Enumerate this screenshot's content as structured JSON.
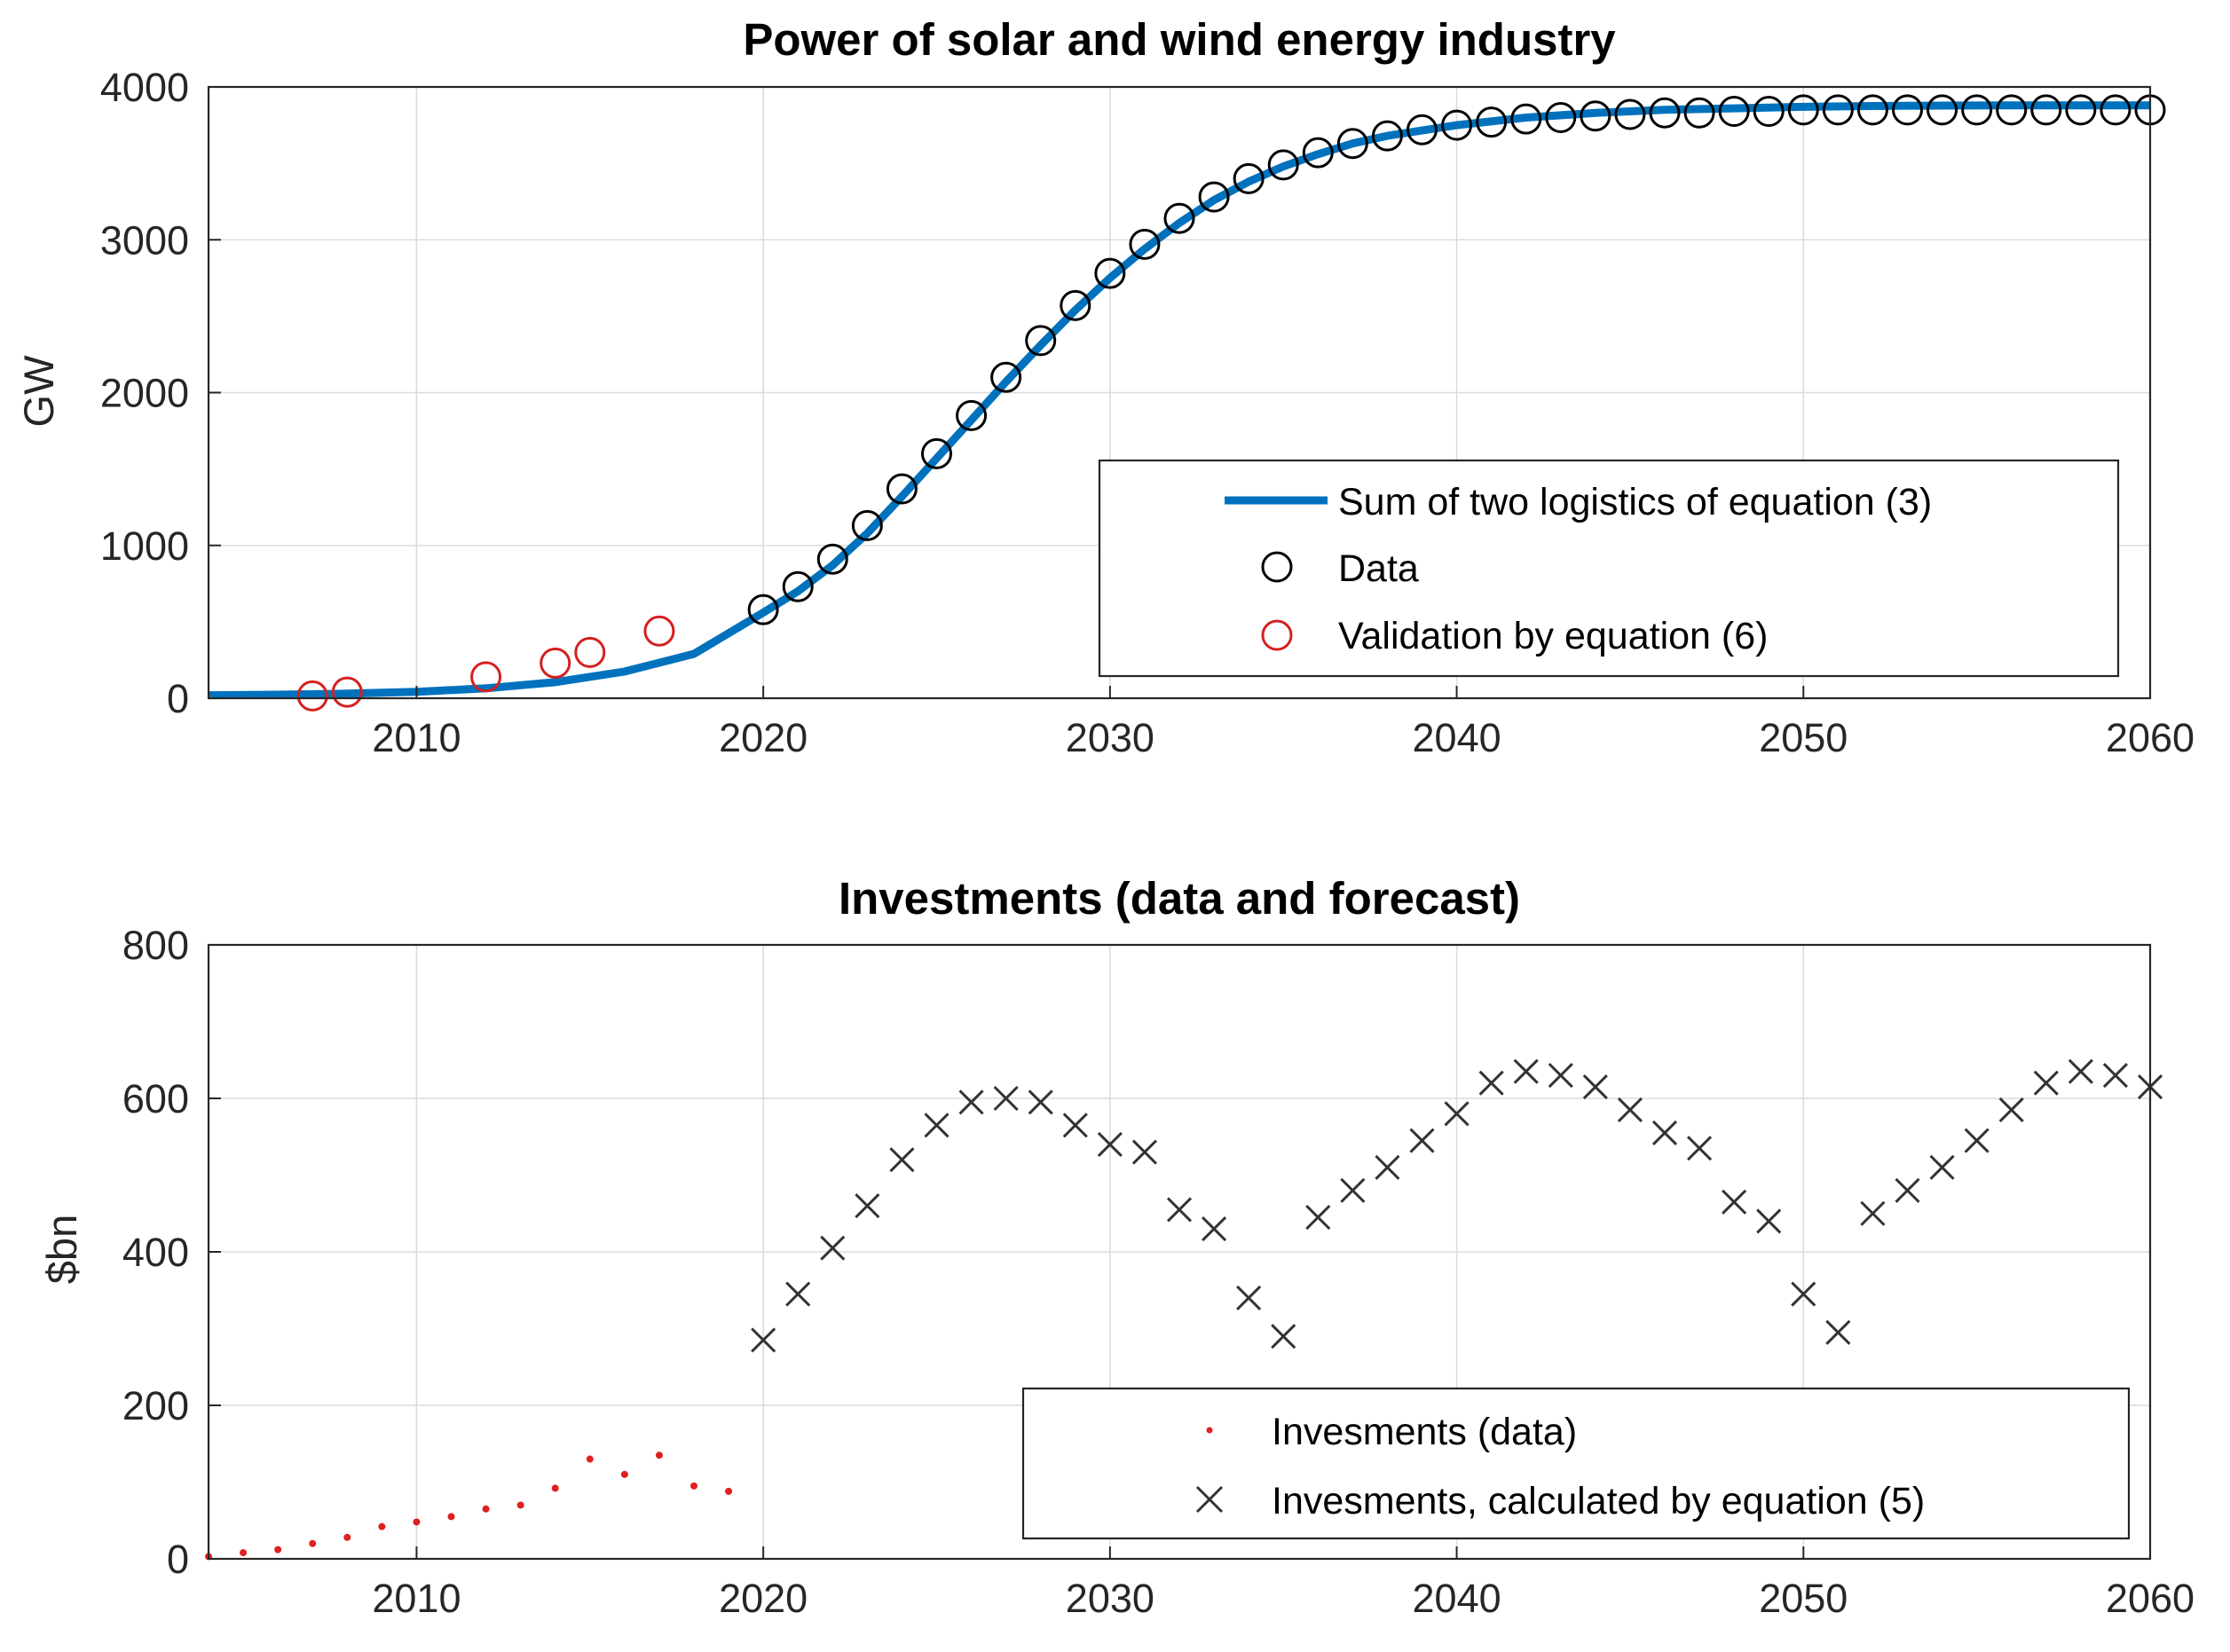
{
  "colors": {
    "fit_line": "#0072BD",
    "data_marker": "#000000",
    "validation_marker": "#D42020",
    "invest_data": "#E02020",
    "invest_calc": "#333333",
    "grid": "#dcdcdc",
    "axis": "#262626"
  },
  "chart_data": [
    {
      "type": "line",
      "title": "Power of solar and wind energy industry",
      "xlabel": "",
      "ylabel": "GW",
      "xlim": [
        2004,
        2060
      ],
      "ylim": [
        0,
        4000
      ],
      "grid": true,
      "xticks": [
        2010,
        2020,
        2030,
        2040,
        2050,
        2060
      ],
      "yticks": [
        0,
        1000,
        2000,
        3000,
        4000
      ],
      "legend_position": "lower-right",
      "series": [
        {
          "name": "Sum of two logistics of equation (3)",
          "style": "line",
          "x": [
            2004,
            2006,
            2008,
            2010,
            2012,
            2014,
            2016,
            2018,
            2020,
            2021,
            2022,
            2023,
            2024,
            2025,
            2026,
            2027,
            2028,
            2029,
            2030,
            2031,
            2032,
            2033,
            2034,
            2035,
            2036,
            2037,
            2038,
            2040,
            2042,
            2044,
            2046,
            2048,
            2050,
            2052,
            2054,
            2056,
            2058,
            2060
          ],
          "y": [
            20,
            23,
            30,
            42,
            65,
            105,
            175,
            290,
            560,
            700,
            870,
            1080,
            1320,
            1570,
            1820,
            2070,
            2310,
            2540,
            2750,
            2940,
            3110,
            3260,
            3380,
            3480,
            3560,
            3630,
            3680,
            3750,
            3800,
            3830,
            3850,
            3860,
            3870,
            3875,
            3878,
            3880,
            3880,
            3880
          ]
        },
        {
          "name": "Data",
          "style": "circle",
          "x": [
            2020,
            2021,
            2022,
            2023,
            2024,
            2025,
            2026,
            2027,
            2028,
            2029,
            2030,
            2031,
            2032,
            2033,
            2034,
            2035,
            2036,
            2037,
            2038,
            2039,
            2040,
            2041,
            2042,
            2043,
            2044,
            2045,
            2046,
            2047,
            2048,
            2049,
            2050,
            2051,
            2052,
            2053,
            2054,
            2055,
            2056,
            2057,
            2058,
            2059,
            2060
          ],
          "y": [
            580,
            730,
            910,
            1130,
            1370,
            1600,
            1850,
            2100,
            2340,
            2570,
            2780,
            2970,
            3140,
            3280,
            3400,
            3490,
            3570,
            3630,
            3680,
            3720,
            3750,
            3770,
            3790,
            3800,
            3810,
            3820,
            3830,
            3830,
            3840,
            3840,
            3850,
            3850,
            3850,
            3850,
            3850,
            3850,
            3850,
            3850,
            3850,
            3850,
            3850
          ]
        },
        {
          "name": "Validation by equation (6)",
          "style": "circle",
          "x": [
            2007,
            2008,
            2012,
            2014,
            2015,
            2017
          ],
          "y": [
            15,
            40,
            140,
            230,
            300,
            440
          ]
        }
      ]
    },
    {
      "type": "scatter",
      "title": "Investments (data and forecast)",
      "xlabel": "",
      "ylabel": "$bn",
      "xlim": [
        2004,
        2060
      ],
      "ylim": [
        0,
        800
      ],
      "grid": true,
      "xticks": [
        2010,
        2020,
        2030,
        2040,
        2050,
        2060
      ],
      "yticks": [
        0,
        200,
        400,
        600,
        800
      ],
      "legend_position": "lower-right",
      "series": [
        {
          "name": "Invesments (data)",
          "style": "dot",
          "x": [
            2004,
            2005,
            2006,
            2007,
            2008,
            2009,
            2010,
            2011,
            2012,
            2013,
            2014,
            2015,
            2016,
            2017,
            2018,
            2019
          ],
          "y": [
            3,
            8,
            12,
            20,
            28,
            42,
            48,
            55,
            65,
            70,
            92,
            130,
            110,
            135,
            95,
            88
          ]
        },
        {
          "name": "Invesments, calculated by equation (5)",
          "style": "x",
          "x": [
            2020,
            2021,
            2022,
            2023,
            2024,
            2025,
            2026,
            2027,
            2028,
            2029,
            2030,
            2031,
            2032,
            2033,
            2034,
            2035,
            2036,
            2037,
            2038,
            2039,
            2040,
            2041,
            2042,
            2043,
            2044,
            2045,
            2046,
            2047,
            2048,
            2049,
            2050,
            2051,
            2052,
            2053,
            2054,
            2055,
            2056,
            2057,
            2058,
            2059,
            2060
          ],
          "y": [
            285,
            345,
            405,
            460,
            520,
            565,
            595,
            600,
            595,
            565,
            540,
            530,
            455,
            430,
            340,
            290,
            445,
            480,
            510,
            545,
            580,
            620,
            635,
            630,
            615,
            585,
            555,
            535,
            465,
            440,
            345,
            295,
            450,
            480,
            510,
            545,
            585,
            620,
            635,
            630,
            615
          ]
        }
      ]
    }
  ]
}
